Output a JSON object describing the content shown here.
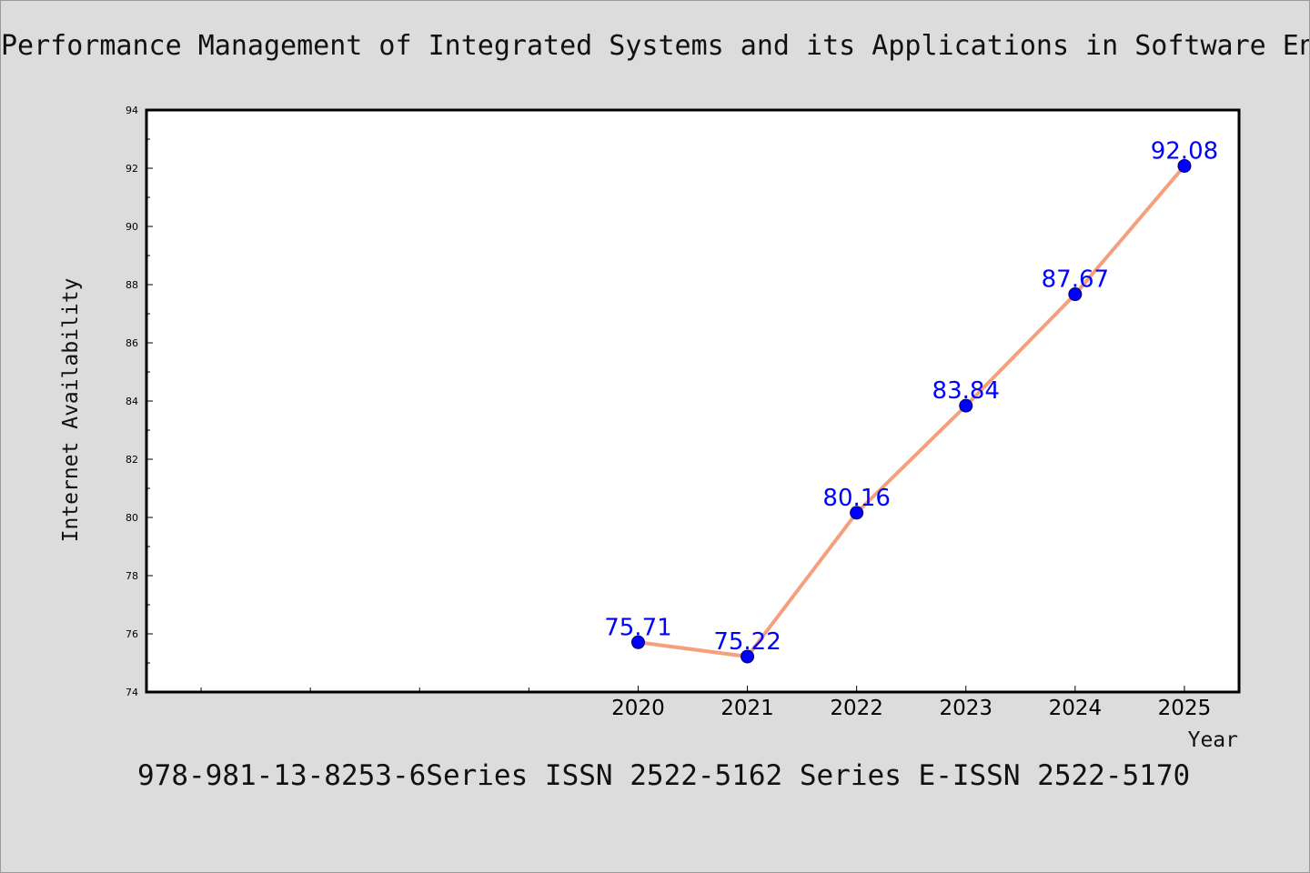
{
  "page": {
    "title": "Performance Management of Integrated Systems and its Applications in Software Engineering",
    "footer": "978-981-13-8253-6Series ISSN 2522-5162 Series E-ISSN 2522-5170"
  },
  "chart_data": {
    "type": "line",
    "title": "Performance Management of Integrated Systems and its Applications in Software Engineering",
    "xlabel": "Year",
    "ylabel": "Internet Availability",
    "x": [
      2020,
      2021,
      2022,
      2023,
      2024,
      2025
    ],
    "values": [
      75.71,
      75.22,
      80.16,
      83.84,
      87.67,
      92.08
    ],
    "data_labels": [
      "75.71",
      "75.22",
      "80.16",
      "83.84",
      "87.67",
      "92.08"
    ],
    "xlim": [
      2015.5,
      2025.5
    ],
    "ylim": [
      74,
      94
    ],
    "yticks": [
      74,
      76,
      78,
      80,
      82,
      84,
      86,
      88,
      90,
      92,
      94
    ],
    "xticks": [
      2020,
      2021,
      2022,
      2023,
      2024,
      2025
    ],
    "grid": false,
    "colors": {
      "line": "#f4a07e",
      "marker": "#0000ff",
      "label": "#0000ff"
    }
  }
}
